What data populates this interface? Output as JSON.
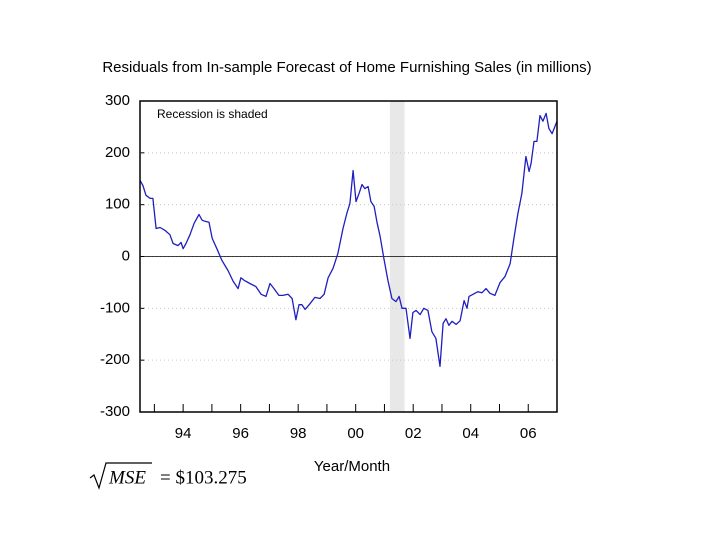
{
  "chart_data": {
    "type": "line",
    "title": "Residuals from In-sample Forecast of Home Furnishing Sales (in millions)",
    "xlabel": "Year/Month",
    "annotation": "Recession is shaded",
    "shaded_region": [
      2001.19,
      2001.7
    ],
    "formula": {
      "radicand": "MSE",
      "rhs": "= $103.275"
    },
    "xlim": [
      1992.5,
      2007.0
    ],
    "xticks": [
      {
        "value": 1994,
        "label": "94"
      },
      {
        "value": 1996,
        "label": "96"
      },
      {
        "value": 1998,
        "label": "98"
      },
      {
        "value": 2000,
        "label": "00"
      },
      {
        "value": 2002,
        "label": "02"
      },
      {
        "value": 2004,
        "label": "04"
      },
      {
        "value": 2006,
        "label": "06"
      }
    ],
    "minor_xticks": [
      1993,
      1995,
      1997,
      1999,
      2001,
      2003,
      2005
    ],
    "ylim": [
      -300,
      300
    ],
    "yticks": [
      300,
      200,
      100,
      0,
      -100,
      -200,
      -300
    ],
    "grid": true,
    "zero_line": true,
    "x": [
      1992.5,
      1992.6,
      1992.71,
      1992.85,
      1992.95,
      1993.06,
      1993.2,
      1993.38,
      1993.54,
      1993.65,
      1993.82,
      1993.93,
      1994.0,
      1994.1,
      1994.24,
      1994.38,
      1994.55,
      1994.66,
      1994.76,
      1994.9,
      1995.01,
      1995.18,
      1995.35,
      1995.56,
      1995.74,
      1995.91,
      1996.01,
      1996.12,
      1996.32,
      1996.53,
      1996.71,
      1996.88,
      1997.02,
      1997.16,
      1997.33,
      1997.47,
      1997.65,
      1997.79,
      1997.92,
      1998.03,
      1998.13,
      1998.24,
      1998.41,
      1998.58,
      1998.76,
      1998.9,
      1999.04,
      1999.21,
      1999.38,
      1999.56,
      1999.7,
      1999.8,
      1999.91,
      2000.01,
      2000.12,
      2000.22,
      2000.32,
      2000.43,
      2000.53,
      2000.64,
      2000.74,
      2000.85,
      2000.98,
      2001.12,
      2001.26,
      2001.4,
      2001.51,
      2001.61,
      2001.75,
      2001.89,
      2001.99,
      2002.1,
      2002.24,
      2002.37,
      2002.51,
      2002.65,
      2002.79,
      2002.93,
      2003.04,
      2003.14,
      2003.24,
      2003.35,
      2003.49,
      2003.63,
      2003.77,
      2003.87,
      2003.94,
      2004.08,
      2004.25,
      2004.39,
      2004.53,
      2004.67,
      2004.84,
      2005.02,
      2005.19,
      2005.37,
      2005.5,
      2005.64,
      2005.78,
      2005.92,
      2006.03,
      2006.1,
      2006.2,
      2006.3,
      2006.41,
      2006.51,
      2006.62,
      2006.72,
      2006.83,
      2007.0
    ],
    "series": [
      {
        "color": "#1f1fbf",
        "values": [
          147,
          137,
          118,
          112,
          112,
          54,
          56,
          50,
          42,
          25,
          21,
          27,
          15,
          25,
          42,
          64,
          81,
          70,
          68,
          66,
          35,
          14,
          -8,
          -27,
          -48,
          -62,
          -41,
          -46,
          -52,
          -58,
          -73,
          -77,
          -52,
          -62,
          -75,
          -75,
          -73,
          -81,
          -122,
          -93,
          -93,
          -102,
          -91,
          -79,
          -81,
          -73,
          -41,
          -23,
          6,
          54,
          85,
          102,
          166,
          106,
          122,
          139,
          131,
          135,
          106,
          97,
          66,
          39,
          -4,
          -46,
          -81,
          -87,
          -77,
          -100,
          -100,
          -158,
          -108,
          -104,
          -112,
          -100,
          -104,
          -145,
          -158,
          -212,
          -129,
          -120,
          -133,
          -125,
          -131,
          -124,
          -85,
          -100,
          -77,
          -73,
          -68,
          -70,
          -62,
          -71,
          -75,
          -50,
          -39,
          -14,
          35,
          83,
          122,
          193,
          164,
          180,
          222,
          222,
          272,
          261,
          276,
          247,
          237,
          261
        ]
      }
    ]
  }
}
